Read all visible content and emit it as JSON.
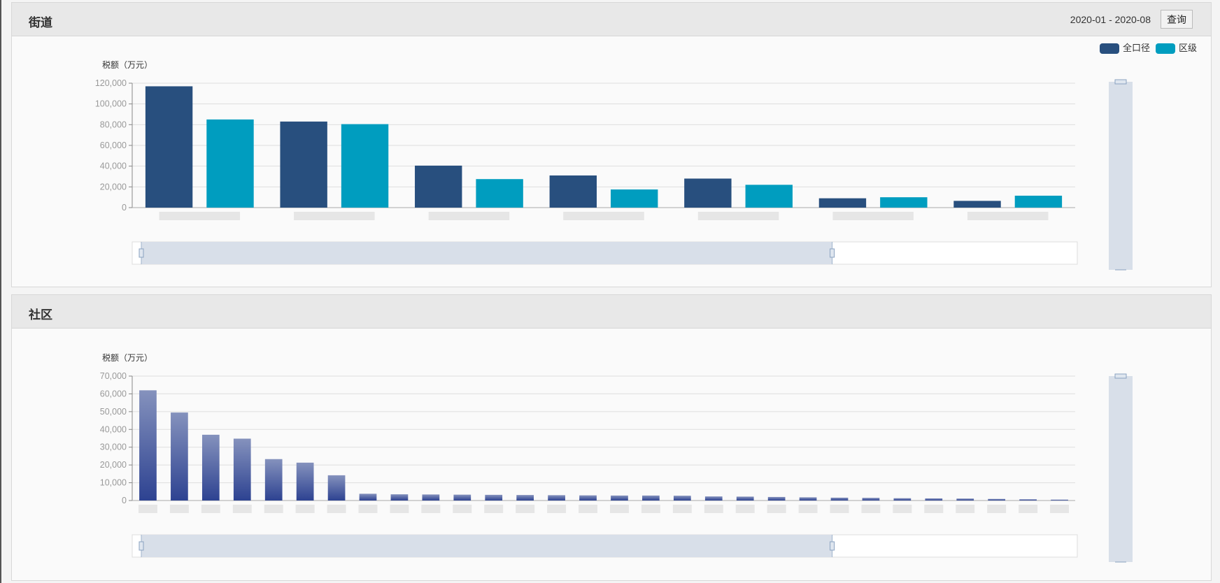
{
  "colors": {
    "total": "#284f7e",
    "district": "#009dbf",
    "community_top": "#8592bd",
    "community_bottom": "#2d4291"
  },
  "panels": [
    {
      "title": "街道",
      "date_range": "2020-01 - 2020-08",
      "query_label": "查询"
    },
    {
      "title": "社区"
    }
  ],
  "chart_data": [
    {
      "type": "bar",
      "ylabel": "税额（万元）",
      "ylim": [
        0,
        120000
      ],
      "yticks": [
        "0",
        "20,000",
        "40,000",
        "60,000",
        "80,000",
        "100,000",
        "120,000"
      ],
      "categories": [
        "",
        "",
        "",
        "",
        "",
        "",
        ""
      ],
      "legend": "top-right",
      "grid": true,
      "series": [
        {
          "name": "全口径",
          "values": [
            117000,
            83000,
            40500,
            31000,
            28000,
            9000,
            6500
          ]
        },
        {
          "name": "区级",
          "values": [
            85000,
            80500,
            27500,
            17500,
            22000,
            10000,
            11500
          ]
        }
      ],
      "datazoom_x": {
        "start": 0,
        "end": 60
      },
      "datazoom_y": {
        "start": 0,
        "end": 100
      }
    },
    {
      "type": "bar",
      "ylabel": "税额（万元）",
      "ylim": [
        0,
        70000
      ],
      "yticks": [
        "0",
        "10,000",
        "20,000",
        "30,000",
        "40,000",
        "50,000",
        "60,000",
        "70,000"
      ],
      "categories": [
        "",
        "",
        "",
        "",
        "",
        "",
        "",
        "",
        "",
        "",
        "",
        "",
        "",
        "",
        "",
        "",
        "",
        "",
        "",
        "",
        "",
        "",
        "",
        "",
        "",
        "",
        "",
        "",
        "",
        ""
      ],
      "grid": true,
      "series": [
        {
          "values": [
            62000,
            49500,
            37000,
            34800,
            23300,
            21300,
            14200,
            3800,
            3500,
            3400,
            3300,
            3200,
            3100,
            3000,
            2900,
            2800,
            2800,
            2700,
            2300,
            2200,
            2000,
            1800,
            1600,
            1500,
            1300,
            1200,
            1100,
            900,
            700,
            500
          ]
        }
      ],
      "datazoom_x": {
        "start": 0,
        "end": 60
      },
      "datazoom_y": {
        "start": 0,
        "end": 100
      }
    }
  ]
}
